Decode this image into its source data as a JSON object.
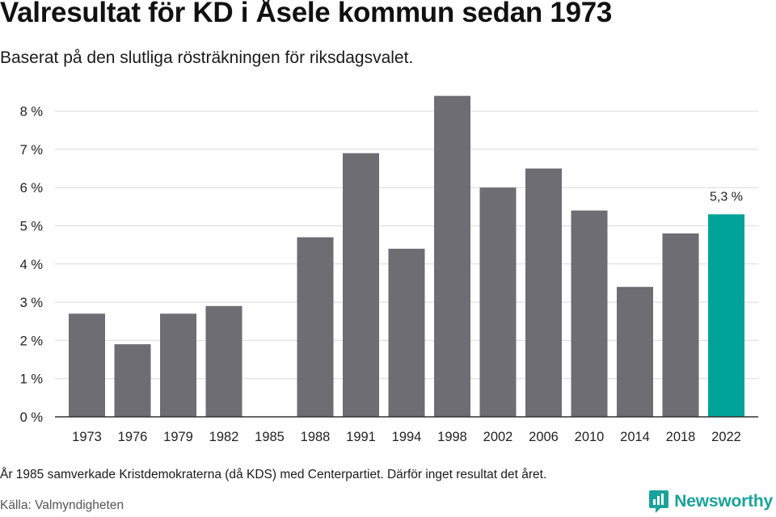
{
  "header": {
    "title": "Valresultat för KD i Åsele kommun sedan 1973",
    "subtitle": "Baserat på den slutliga rösträkningen för riksdagsvalet."
  },
  "footer": {
    "note": "År 1985 samverkade Kristdemokraterna (då KDS) med Centerpartiet. Därför inget resultat det året.",
    "source": "Källa: Valmyndigheten",
    "brand": "Newsworthy"
  },
  "colors": {
    "bar": "#6e6d73",
    "highlight": "#00a398",
    "grid": "#d9d9d9",
    "axis": "#333333",
    "brand": "#1aa39a"
  },
  "chart_data": {
    "type": "bar",
    "categories": [
      "1973",
      "1976",
      "1979",
      "1982",
      "1985",
      "1988",
      "1991",
      "1994",
      "1998",
      "2002",
      "2006",
      "2010",
      "2014",
      "2018",
      "2022"
    ],
    "values": [
      2.7,
      1.9,
      2.7,
      2.9,
      null,
      4.7,
      6.9,
      4.4,
      8.4,
      6.0,
      6.5,
      5.4,
      3.4,
      4.8,
      5.3
    ],
    "highlight_index": 14,
    "highlight_label": "5,3 %",
    "yticks": [
      "0 %",
      "1 %",
      "2 %",
      "3 %",
      "4 %",
      "5 %",
      "6 %",
      "7 %",
      "8 %"
    ],
    "ylim": [
      0,
      8.4
    ],
    "grid": true,
    "title": "Valresultat för KD i Åsele kommun sedan 1973",
    "xlabel": "",
    "ylabel": ""
  }
}
